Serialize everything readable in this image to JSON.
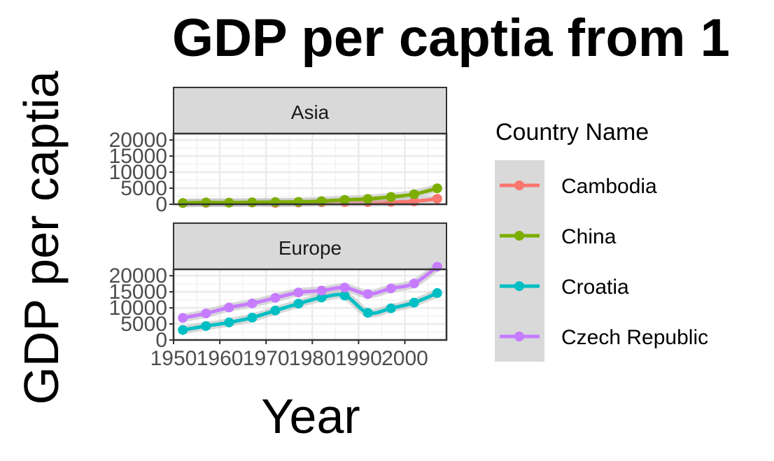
{
  "chart_data": {
    "type": "line",
    "title": "GDP per captia from 1",
    "xlabel": "Year",
    "ylabel": "GDP per captia",
    "x_ticks": [
      1950,
      1960,
      1970,
      1980,
      1990,
      2000
    ],
    "y_ticks": [
      0,
      5000,
      10000,
      15000,
      20000
    ],
    "xlim": [
      1950,
      2009
    ],
    "ylim": [
      0,
      22000
    ],
    "grid": true,
    "smooth_lines": true,
    "legend": {
      "title": "Country Name",
      "placement": "right"
    },
    "panels": [
      {
        "label": "Asia",
        "series": [
          {
            "name": "Cambodia",
            "color": "#F8766D",
            "x": [
              1952,
              1957,
              1962,
              1967,
              1972,
              1977,
              1982,
              1987,
              1992,
              1997,
              2002,
              2007
            ],
            "values": [
              368,
              434,
              497,
              523,
              422,
              525,
              625,
              684,
              682,
              734,
              896,
              1714
            ]
          },
          {
            "name": "China",
            "color": "#7CAE00",
            "x": [
              1952,
              1957,
              1962,
              1967,
              1972,
              1977,
              1982,
              1987,
              1992,
              1997,
              2002,
              2007
            ],
            "values": [
              400,
              576,
              488,
              613,
              677,
              741,
              962,
              1379,
              1656,
              2289,
              3119,
              4959
            ]
          }
        ]
      },
      {
        "label": "Europe",
        "series": [
          {
            "name": "Croatia",
            "color": "#00BFC4",
            "x": [
              1952,
              1957,
              1962,
              1967,
              1972,
              1977,
              1982,
              1987,
              1992,
              1997,
              2002,
              2007
            ],
            "values": [
              3119,
              4338,
              5478,
              6960,
              9164,
              11305,
              13222,
              13823,
              8448,
              9876,
              11628,
              14619
            ]
          },
          {
            "name": "Czech Republic",
            "color": "#C77CFF",
            "x": [
              1952,
              1957,
              1962,
              1967,
              1972,
              1977,
              1982,
              1987,
              1992,
              1997,
              2002,
              2007
            ],
            "values": [
              6876,
              8256,
              10137,
              11399,
              13108,
              14800,
              15377,
              16310,
              14297,
              16049,
              17596,
              22833
            ]
          }
        ]
      }
    ]
  }
}
